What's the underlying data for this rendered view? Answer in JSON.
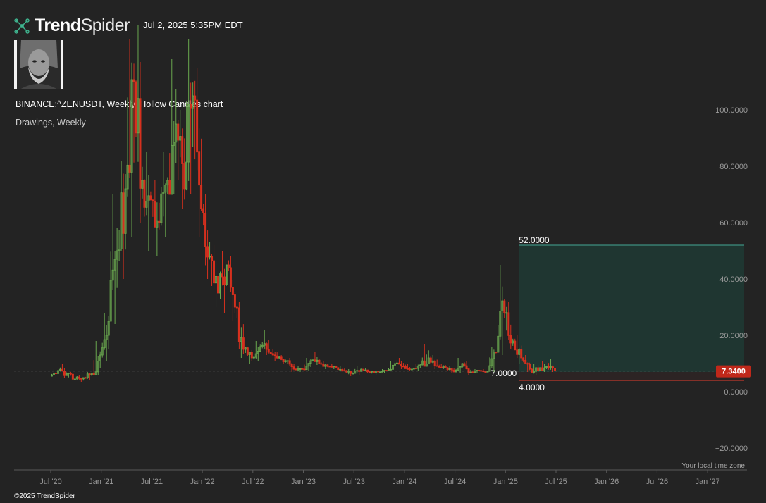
{
  "header": {
    "brand_bold": "Trend",
    "brand_light": "Spider",
    "timestamp": "Jul 2, 2025 5:35PM EDT"
  },
  "chart_title": "BINANCE:^ZENUSDT, Weekly, Hollow Candles chart",
  "chart_subtitle": "Drawings, Weekly",
  "footer": "©2025 TrendSpider",
  "timezone_label": "Your local time zone",
  "colors": {
    "background": "#232323",
    "up": "#6aa84f",
    "down": "#d6301e",
    "zone_fill": "#1f3631",
    "target_line": "#3d8f80",
    "stop_line": "#c0392b",
    "price_tag": "#c0281a"
  },
  "icons": {
    "brand": "network-nodes-icon",
    "avatar": "bearded-man-portrait"
  },
  "chart_data": {
    "type": "candlestick",
    "title": "BINANCE:^ZENUSDT, Weekly, Hollow Candles chart",
    "ylim": [
      -20,
      120
    ],
    "yticks": [
      {
        "value": 100,
        "label": "100.0000"
      },
      {
        "value": 80,
        "label": "80.0000"
      },
      {
        "value": 60,
        "label": "60.0000"
      },
      {
        "value": 40,
        "label": "40.0000"
      },
      {
        "value": 20,
        "label": "20.0000"
      },
      {
        "value": 0,
        "label": "0.0000"
      },
      {
        "value": -20,
        "label": "−20.0000"
      }
    ],
    "xticks": [
      "Jul '20",
      "Jan '21",
      "Jul '21",
      "Jan '22",
      "Jul '22",
      "Jan '23",
      "Jul '23",
      "Jan '24",
      "Jul '24",
      "Jan '25",
      "Jul '25",
      "Jan '26",
      "Jul '26",
      "Jan '27"
    ],
    "current_price": {
      "value": 7.34,
      "label": "7.3400"
    },
    "zone": {
      "entry": {
        "value": 7.0,
        "label": "7.0000"
      },
      "target": {
        "value": 52.0,
        "label": "52.0000"
      },
      "stop": {
        "value": 4.0,
        "label": "4.0000"
      },
      "start": "Mar '25",
      "end": "Dec '27"
    },
    "series": [
      {
        "values": [
          [
            "Jul '20",
            5.5,
            8.0,
            5.0,
            7.5
          ],
          [
            "Aug '20",
            7.5,
            10.0,
            5.0,
            6.5
          ],
          [
            "Sep '20",
            6.5,
            7.0,
            4.0,
            4.5
          ],
          [
            "Oct '20",
            4.5,
            6.0,
            3.5,
            5.0
          ],
          [
            "Nov '20",
            5.0,
            7.0,
            4.0,
            6.5
          ],
          [
            "Dec '20",
            6.5,
            18.0,
            6.0,
            13.0
          ],
          [
            "Jan '21",
            13.0,
            28.0,
            11.0,
            25.0
          ],
          [
            "Feb '21",
            25.0,
            70.0,
            24.0,
            50.0
          ],
          [
            "Mar '21",
            50.0,
            82.0,
            40.0,
            72.0
          ],
          [
            "Apr '21",
            72.0,
            125.0,
            55.0,
            110.0
          ],
          [
            "May '21",
            110.0,
            130.0,
            60.0,
            75.0
          ],
          [
            "Jun '21",
            75.0,
            85.0,
            50.0,
            68.0
          ],
          [
            "Jul '21",
            68.0,
            75.0,
            48.0,
            60.0
          ],
          [
            "Aug '21",
            60.0,
            85.0,
            55.0,
            75.0
          ],
          [
            "Sep '21",
            75.0,
            118.0,
            70.0,
            95.0
          ],
          [
            "Oct '21",
            95.0,
            100.0,
            65.0,
            72.0
          ],
          [
            "Nov '21",
            72.0,
            125.0,
            70.0,
            105.0
          ],
          [
            "Dec '21",
            105.0,
            115.0,
            55.0,
            65.0
          ],
          [
            "Jan '22",
            65.0,
            70.0,
            40.0,
            48.0
          ],
          [
            "Feb '22",
            48.0,
            52.0,
            30.0,
            35.0
          ],
          [
            "Mar '22",
            35.0,
            50.0,
            28.0,
            45.0
          ],
          [
            "Apr '22",
            45.0,
            48.0,
            25.0,
            30.0
          ],
          [
            "May '22",
            30.0,
            32.0,
            12.0,
            15.0
          ],
          [
            "Jun '22",
            15.0,
            16.0,
            10.0,
            12.0
          ],
          [
            "Jul '22",
            12.0,
            18.0,
            11.0,
            16.0
          ],
          [
            "Aug '22",
            16.0,
            22.0,
            13.0,
            14.0
          ],
          [
            "Sep '22",
            14.0,
            15.0,
            11.0,
            12.0
          ],
          [
            "Oct '22",
            12.0,
            13.0,
            10.0,
            11.0
          ],
          [
            "Nov '22",
            11.0,
            12.0,
            7.0,
            8.0
          ],
          [
            "Dec '22",
            8.0,
            9.0,
            7.0,
            8.0
          ],
          [
            "Jan '23",
            8.0,
            12.0,
            7.5,
            11.0
          ],
          [
            "Feb '23",
            11.0,
            14.0,
            9.5,
            10.0
          ],
          [
            "Mar '23",
            10.0,
            11.0,
            8.0,
            9.0
          ],
          [
            "Apr '23",
            9.0,
            10.0,
            8.0,
            8.5
          ],
          [
            "May '23",
            8.5,
            9.0,
            7.0,
            7.5
          ],
          [
            "Jun '23",
            7.5,
            8.0,
            5.5,
            6.5
          ],
          [
            "Jul '23",
            6.5,
            9.0,
            6.0,
            8.0
          ],
          [
            "Aug '23",
            8.0,
            8.5,
            6.5,
            7.0
          ],
          [
            "Sep '23",
            7.0,
            7.5,
            6.0,
            7.0
          ],
          [
            "Oct '23",
            7.0,
            8.0,
            6.5,
            7.5
          ],
          [
            "Nov '23",
            7.5,
            11.0,
            7.0,
            10.0
          ],
          [
            "Dec '23",
            10.0,
            12.0,
            8.0,
            9.0
          ],
          [
            "Jan '24",
            9.0,
            10.0,
            7.5,
            8.0
          ],
          [
            "Feb '24",
            8.0,
            10.0,
            7.5,
            9.5
          ],
          [
            "Mar '24",
            9.5,
            17.0,
            9.0,
            12.0
          ],
          [
            "Apr '24",
            12.0,
            13.0,
            8.0,
            9.0
          ],
          [
            "May '24",
            9.0,
            10.0,
            8.0,
            8.5
          ],
          [
            "Jun '24",
            8.5,
            9.0,
            6.5,
            7.0
          ],
          [
            "Jul '24",
            7.0,
            12.0,
            6.5,
            10.0
          ],
          [
            "Aug '24",
            10.0,
            11.0,
            6.0,
            7.0
          ],
          [
            "Sep '24",
            7.0,
            8.0,
            6.5,
            7.5
          ],
          [
            "Oct '24",
            7.5,
            8.0,
            6.8,
            7.2
          ],
          [
            "Nov '24",
            7.2,
            16.0,
            7.0,
            14.0
          ],
          [
            "Dec '24",
            14.0,
            45.0,
            13.0,
            28.0
          ],
          [
            "Jan '25",
            28.0,
            32.0,
            15.0,
            18.0
          ],
          [
            "Feb '25",
            18.0,
            20.0,
            10.0,
            12.0
          ],
          [
            "Mar '25",
            12.0,
            13.0,
            7.0,
            8.0
          ],
          [
            "Apr '25",
            8.0,
            10.0,
            6.0,
            7.5
          ],
          [
            "May '25",
            7.5,
            11.0,
            7.0,
            9.0
          ],
          [
            "Jun '25",
            9.0,
            11.5,
            7.0,
            7.34
          ]
        ]
      }
    ]
  }
}
